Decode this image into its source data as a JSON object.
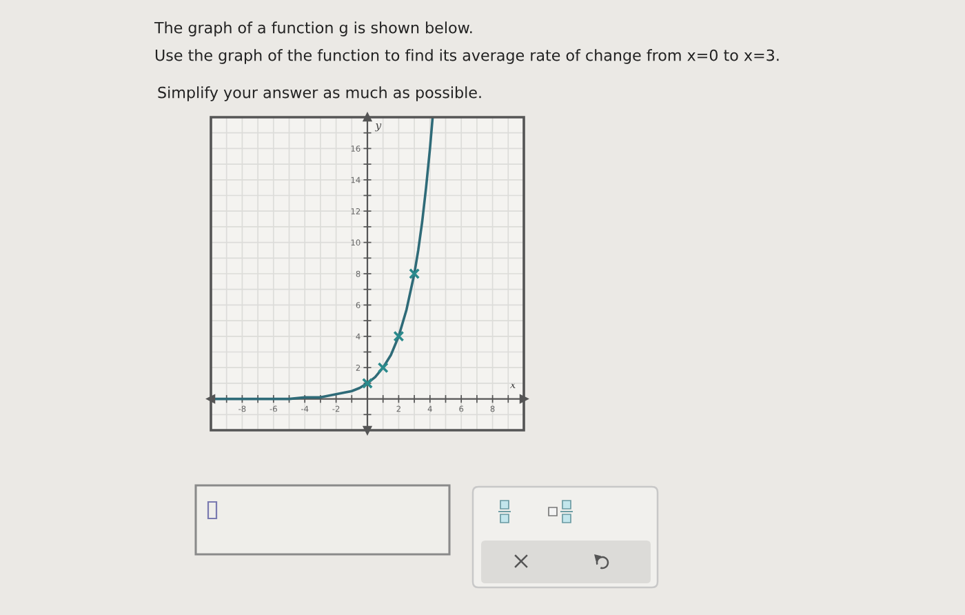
{
  "chart_data": {
    "type": "line",
    "title": "The graph of a function g is shown below.",
    "subtitle": "Use the graph of the function to find its average rate of change from x=0 to x=3.",
    "annotations": [
      "Simplify your answer as much as possible."
    ],
    "xlabel": "x",
    "ylabel": "y",
    "xlim": [
      -10,
      10
    ],
    "ylim": [
      -2,
      18
    ],
    "xticks": [
      {
        "value": -9,
        "label": null
      },
      -8,
      {
        "value": -7,
        "label": null
      },
      -6,
      {
        "value": -5,
        "label": null
      },
      -4,
      {
        "value": -3,
        "label": null
      },
      -2,
      {
        "value": -1,
        "label": null
      },
      {
        "value": 1,
        "label": null
      },
      2,
      {
        "value": 3,
        "label": null
      },
      4,
      {
        "value": 5,
        "label": null
      },
      6,
      {
        "value": 7,
        "label": null
      },
      8,
      {
        "value": 9,
        "label": null
      }
    ],
    "yticks": [
      {
        "value": -1,
        "label": null
      },
      {
        "value": 1,
        "label": null
      },
      2,
      {
        "value": 3,
        "label": null
      },
      4,
      {
        "value": 5,
        "label": null
      },
      6,
      {
        "value": 7,
        "label": null
      },
      8,
      {
        "value": 9,
        "label": null
      },
      10,
      {
        "value": 11,
        "label": null
      },
      12,
      {
        "value": 13,
        "label": null
      },
      14,
      {
        "value": 15,
        "label": null
      },
      16,
      {
        "value": 17,
        "label": null
      }
    ],
    "grid": true,
    "series": [
      {
        "color": "#2f6b78",
        "marker": "none",
        "line_style": "solid",
        "x": [
          -10,
          -9,
          -8,
          -7,
          -6,
          -5,
          -4,
          -3,
          -2,
          -1.5,
          -1,
          -0.5,
          0,
          0.5,
          1,
          1.5,
          2,
          2.5,
          3,
          3.25,
          3.5,
          3.75,
          4,
          4.17
        ],
        "values": [
          0,
          0,
          0,
          0,
          0,
          0,
          0.1,
          0.1,
          0.3,
          0.4,
          0.5,
          0.7,
          1,
          1.4,
          2,
          2.8,
          4,
          5.7,
          8,
          9.5,
          11.3,
          13.5,
          16,
          18
        ]
      },
      {
        "type": "scatter",
        "color": "#2a8a8c",
        "marker": "cross",
        "x": [
          0,
          1,
          2,
          3
        ],
        "values": [
          1,
          2,
          4,
          8
        ]
      }
    ]
  }
}
